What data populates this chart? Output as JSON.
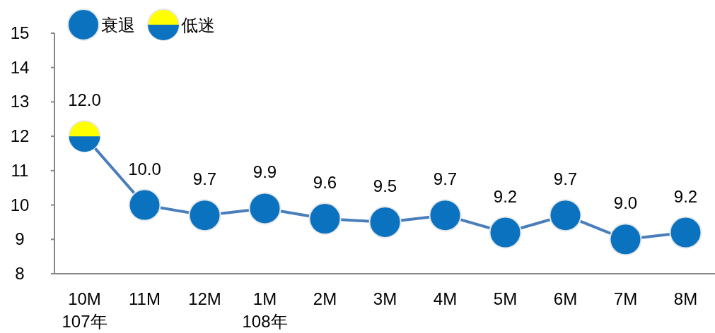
{
  "chart_data": {
    "type": "line",
    "categories": [
      "10M\n107年",
      "11M",
      "12M",
      "1M\n108年",
      "2M",
      "3M",
      "4M",
      "5M",
      "6M",
      "7M",
      "8M"
    ],
    "series": [
      {
        "color": "#4a7ebb",
        "values": [
          12.0,
          10.0,
          9.7,
          9.9,
          9.6,
          9.5,
          9.7,
          9.2,
          9.7,
          9.0,
          9.2
        ],
        "value_labels": [
          "12.0",
          "10.0",
          "9.7",
          "9.9",
          "9.6",
          "9.5",
          "9.7",
          "9.2",
          "9.7",
          "9.0",
          "9.2"
        ]
      },
      {
        "type": "scatter",
        "name": "衰退",
        "color": "#0b72c0",
        "marker": "circle",
        "values": [
          null,
          10.0,
          9.7,
          9.9,
          9.6,
          9.5,
          9.7,
          9.2,
          9.7,
          9.0,
          9.2
        ]
      },
      {
        "type": "scatter",
        "name": "低迷",
        "color": "#ffff00",
        "marker": "circle",
        "values": [
          12.0,
          null,
          null,
          null,
          null,
          null,
          null,
          null,
          null,
          null,
          null
        ]
      }
    ],
    "ylim": [
      8,
      15
    ],
    "yticks": [
      8,
      9,
      10,
      11,
      12,
      13,
      14,
      15
    ],
    "legend": "top left",
    "grid": false
  }
}
